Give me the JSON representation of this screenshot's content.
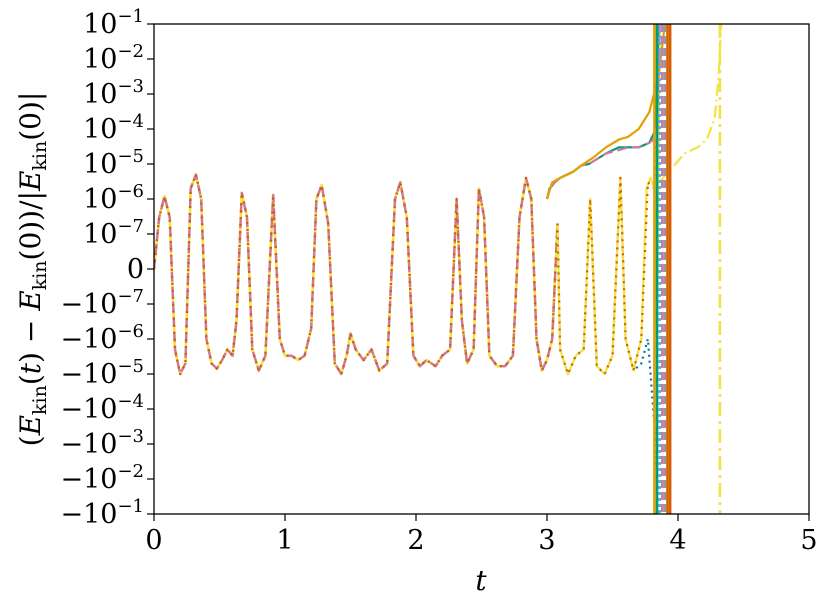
{
  "chart_data": {
    "type": "line",
    "xlabel": "t",
    "ylabel": "(E_kin(t) − E_kin(0))/|E_kin(0)|",
    "xlim": [
      0,
      5
    ],
    "yscale": "symlog",
    "x_ticks": [
      0,
      1,
      2,
      3,
      4,
      5
    ],
    "y_ticks": [
      {
        "v": 0.1,
        "label": "10^{-1}"
      },
      {
        "v": 0.01,
        "label": "10^{-2}"
      },
      {
        "v": 0.001,
        "label": "10^{-3}"
      },
      {
        "v": 0.0001,
        "label": "10^{-4}"
      },
      {
        "v": 1e-05,
        "label": "10^{-5}"
      },
      {
        "v": 1e-06,
        "label": "10^{-6}"
      },
      {
        "v": 1e-07,
        "label": "10^{-7}"
      },
      {
        "v": 0,
        "label": "0"
      },
      {
        "v": -1e-07,
        "label": "-10^{-7}"
      },
      {
        "v": -1e-06,
        "label": "-10^{-6}"
      },
      {
        "v": -1e-05,
        "label": "-10^{-5}"
      },
      {
        "v": -0.0001,
        "label": "-10^{-4}"
      },
      {
        "v": -0.001,
        "label": "-10^{-3}"
      },
      {
        "v": -0.01,
        "label": "-10^{-2}"
      },
      {
        "v": -0.1,
        "label": "-10^{-1}"
      }
    ],
    "common_oscillation": [
      [
        0.0,
        0
      ],
      [
        0.04,
        3e-07
      ],
      [
        0.08,
        1.2e-06
      ],
      [
        0.12,
        3e-07
      ],
      [
        0.16,
        -2e-06
      ],
      [
        0.2,
        -1e-05
      ],
      [
        0.24,
        -5e-06
      ],
      [
        0.28,
        2e-06
      ],
      [
        0.32,
        5e-06
      ],
      [
        0.36,
        1e-06
      ],
      [
        0.4,
        -1e-06
      ],
      [
        0.44,
        -5e-06
      ],
      [
        0.48,
        -7e-06
      ],
      [
        0.52,
        -4e-06
      ],
      [
        0.56,
        -2e-06
      ],
      [
        0.6,
        -3e-06
      ],
      [
        0.63,
        -3e-07
      ],
      [
        0.67,
        1.5e-06
      ],
      [
        0.71,
        3e-07
      ],
      [
        0.75,
        -2e-06
      ],
      [
        0.8,
        -8e-06
      ],
      [
        0.85,
        -3e-06
      ],
      [
        0.91,
        1.3e-06
      ],
      [
        0.96,
        -1e-06
      ],
      [
        1.0,
        -3e-06
      ],
      [
        1.05,
        -3e-06
      ],
      [
        1.1,
        -4e-06
      ],
      [
        1.15,
        -3e-06
      ],
      [
        1.2,
        -5e-07
      ],
      [
        1.24,
        1e-06
      ],
      [
        1.28,
        2.5e-06
      ],
      [
        1.33,
        2e-07
      ],
      [
        1.38,
        -5e-06
      ],
      [
        1.43,
        -1e-05
      ],
      [
        1.47,
        -3e-06
      ],
      [
        1.5,
        -7e-07
      ],
      [
        1.54,
        -2e-06
      ],
      [
        1.6,
        -4e-06
      ],
      [
        1.66,
        -2e-06
      ],
      [
        1.72,
        -8e-06
      ],
      [
        1.78,
        -5e-06
      ],
      [
        1.84,
        1e-06
      ],
      [
        1.88,
        3e-06
      ],
      [
        1.93,
        3e-07
      ],
      [
        1.98,
        -3e-06
      ],
      [
        2.03,
        -6e-06
      ],
      [
        2.08,
        -4e-06
      ],
      [
        2.15,
        -6e-06
      ],
      [
        2.2,
        -3e-06
      ],
      [
        2.26,
        -2e-06
      ],
      [
        2.31,
        1e-06
      ],
      [
        2.35,
        -3e-07
      ],
      [
        2.39,
        -5e-06
      ],
      [
        2.44,
        -2e-06
      ],
      [
        2.48,
        2e-06
      ],
      [
        2.52,
        3e-07
      ],
      [
        2.56,
        -3e-06
      ],
      [
        2.62,
        -6e-06
      ],
      [
        2.68,
        -6e-06
      ],
      [
        2.74,
        -3e-06
      ],
      [
        2.79,
        3e-07
      ],
      [
        2.84,
        4e-06
      ],
      [
        2.88,
        1e-06
      ],
      [
        2.92,
        -1e-06
      ],
      [
        2.96,
        -8e-06
      ],
      [
        3.0,
        -4e-06
      ],
      [
        3.04,
        -1e-06
      ],
      [
        3.08,
        2e-07
      ]
    ],
    "diverged_series": [
      {
        "name": "",
        "color": "#009E73",
        "dash": "",
        "points": [
          [
            3.0,
            1e-06
          ],
          [
            3.02,
            2e-06
          ],
          [
            3.06,
            3e-06
          ],
          [
            3.1,
            4e-06
          ],
          [
            3.2,
            6e-06
          ],
          [
            3.26,
            9e-06
          ],
          [
            3.32,
            1e-05
          ],
          [
            3.45,
            2e-05
          ],
          [
            3.55,
            3e-05
          ],
          [
            3.62,
            3e-05
          ],
          [
            3.7,
            3e-05
          ],
          [
            3.78,
            4e-05
          ],
          [
            3.82,
            8e-05
          ],
          [
            3.84,
            0.001
          ],
          [
            3.85,
            0.1
          ]
        ]
      },
      {
        "name": "",
        "color": "#CC79A7",
        "dash": "10,5",
        "points": [
          [
            3.0,
            1e-06
          ],
          [
            3.02,
            2e-06
          ],
          [
            3.06,
            3e-06
          ],
          [
            3.1,
            4e-06
          ],
          [
            3.2,
            6e-06
          ],
          [
            3.26,
            9e-06
          ],
          [
            3.32,
            1e-05
          ],
          [
            3.45,
            2e-05
          ],
          [
            3.55,
            2.5e-05
          ],
          [
            3.62,
            3e-05
          ],
          [
            3.7,
            3e-05
          ],
          [
            3.78,
            4e-05
          ],
          [
            3.84,
            6e-05
          ],
          [
            3.86,
            0.1
          ]
        ]
      },
      {
        "name": "",
        "color": "#E69F00",
        "dash": "",
        "points": [
          [
            3.0,
            1e-06
          ],
          [
            3.04,
            3e-06
          ],
          [
            3.1,
            4e-06
          ],
          [
            3.2,
            6e-06
          ],
          [
            3.26,
            9e-06
          ],
          [
            3.35,
            1.5e-05
          ],
          [
            3.45,
            3e-05
          ],
          [
            3.55,
            5e-05
          ],
          [
            3.62,
            6e-05
          ],
          [
            3.7,
            0.0001
          ],
          [
            3.78,
            0.0003
          ],
          [
            3.85,
            0.003
          ],
          [
            3.9,
            0.1
          ]
        ]
      }
    ],
    "late_series": [
      {
        "name": "",
        "color": "#0072B2",
        "dash": "2,4",
        "points": [
          [
            3.08,
            2e-07
          ],
          [
            3.1,
            -2e-06
          ],
          [
            3.16,
            -1e-05
          ],
          [
            3.22,
            -3e-06
          ],
          [
            3.28,
            -2e-06
          ],
          [
            3.33,
            1e-06
          ],
          [
            3.38,
            -6e-06
          ],
          [
            3.44,
            -1e-05
          ],
          [
            3.5,
            -3e-06
          ],
          [
            3.56,
            4e-06
          ],
          [
            3.6,
            -1e-06
          ],
          [
            3.66,
            -8e-06
          ],
          [
            3.72,
            -5e-06
          ],
          [
            3.77,
            -1e-06
          ],
          [
            3.8,
            -3e-05
          ],
          [
            3.83,
            -0.0008
          ],
          [
            3.85,
            -0.1
          ]
        ]
      },
      {
        "name": "",
        "color": "#F0E442",
        "dash": "",
        "points": [
          [
            3.08,
            2e-07
          ],
          [
            3.1,
            -2e-06
          ],
          [
            3.16,
            -1e-05
          ],
          [
            3.22,
            -3e-06
          ],
          [
            3.28,
            -2e-06
          ],
          [
            3.33,
            1e-06
          ],
          [
            3.38,
            -6e-06
          ],
          [
            3.44,
            -1e-05
          ],
          [
            3.5,
            -3e-06
          ],
          [
            3.56,
            4e-06
          ],
          [
            3.6,
            -1e-06
          ],
          [
            3.66,
            -8e-06
          ],
          [
            3.72,
            -1e-06
          ],
          [
            3.76,
            2e-06
          ],
          [
            3.79,
            4e-06
          ],
          [
            3.82,
            2e-06
          ],
          [
            3.84,
            -1e-06
          ],
          [
            3.86,
            0.1
          ]
        ]
      },
      {
        "name": "",
        "color": "#D55E00",
        "dash": "2,5",
        "points": [
          [
            3.08,
            2e-07
          ],
          [
            3.1,
            -2e-06
          ],
          [
            3.16,
            -1e-05
          ],
          [
            3.22,
            -3e-06
          ],
          [
            3.28,
            -2e-06
          ],
          [
            3.33,
            1e-06
          ],
          [
            3.38,
            -6e-06
          ],
          [
            3.44,
            -1e-05
          ],
          [
            3.5,
            -3e-06
          ],
          [
            3.56,
            4e-06
          ],
          [
            3.6,
            -1e-06
          ],
          [
            3.66,
            -8e-06
          ],
          [
            3.72,
            -1e-06
          ],
          [
            3.77,
            3e-06
          ],
          [
            3.82,
            2e-06
          ],
          [
            3.85,
            0.1
          ]
        ]
      },
      {
        "name": "",
        "color": "#F0E442",
        "dash": "12,4,2,4",
        "points": [
          [
            3.86,
            3e-06
          ],
          [
            3.92,
            6e-06
          ],
          [
            3.98,
            1e-05
          ],
          [
            4.05,
            2e-05
          ],
          [
            4.15,
            3e-05
          ],
          [
            4.22,
            5e-05
          ],
          [
            4.28,
            0.0002
          ],
          [
            4.31,
            0.003
          ],
          [
            4.33,
            0.1
          ]
        ]
      }
    ],
    "vertical_lines": [
      {
        "x": 3.82,
        "color": "#E69F00",
        "dash": ""
      },
      {
        "x": 3.84,
        "color": "#009E73",
        "dash": ""
      },
      {
        "x": 3.86,
        "color": "#56B4E9",
        "dash": "3,3"
      },
      {
        "x": 3.88,
        "color": "#CC79A7",
        "dash": "8,4"
      },
      {
        "x": 3.9,
        "color": "#999999",
        "dash": "8,4"
      },
      {
        "x": 3.92,
        "color": "#D55E00",
        "dash": ""
      },
      {
        "x": 3.94,
        "color": "#D55E00",
        "dash": ""
      },
      {
        "x": 4.32,
        "color": "#F0E442",
        "dash": "14,5,3,5"
      }
    ]
  }
}
